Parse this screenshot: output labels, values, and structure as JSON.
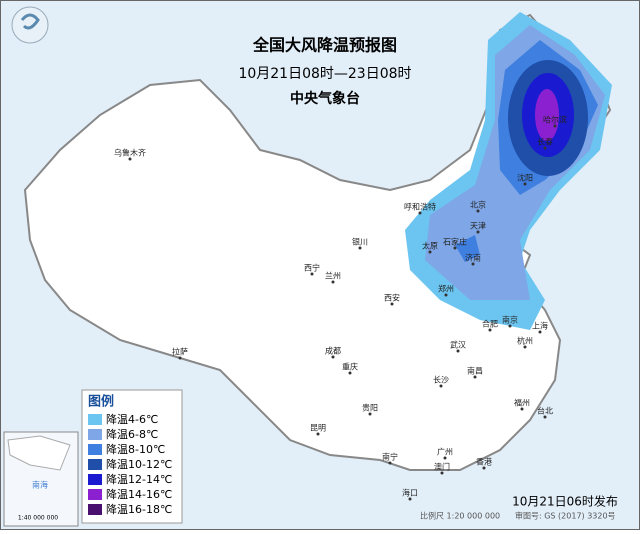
{
  "header": {
    "title": "全国大风降温预报图",
    "period": "10月21日08时—23日08时",
    "agency": "中央气象台"
  },
  "legend": {
    "title": "图例",
    "items": [
      {
        "label": "降温4-6℃",
        "color": "#6cc5f0"
      },
      {
        "label": "降温6-8℃",
        "color": "#7fa6e6"
      },
      {
        "label": "降温8-10℃",
        "color": "#3f7fe0"
      },
      {
        "label": "降温10-12℃",
        "color": "#1f4fa8"
      },
      {
        "label": "降温12-14℃",
        "color": "#1a1ad0"
      },
      {
        "label": "降温14-16℃",
        "color": "#8a20d0"
      },
      {
        "label": "降温16-18℃",
        "color": "#4a1070"
      }
    ]
  },
  "cities": [
    "乌鲁木齐",
    "拉萨",
    "西宁",
    "兰州",
    "银川",
    "呼和浩特",
    "北京",
    "天津",
    "石家庄",
    "太原",
    "济南",
    "郑州",
    "西安",
    "成都",
    "重庆",
    "贵阳",
    "昆明",
    "南宁",
    "武汉",
    "长沙",
    "南昌",
    "合肥",
    "南京",
    "上海",
    "杭州",
    "福州",
    "台北",
    "广州",
    "澳门",
    "香港",
    "海口",
    "沈阳",
    "长春",
    "哈尔滨"
  ],
  "inset": {
    "scale": "1:40 000 000",
    "sea": "南海"
  },
  "footer": {
    "scale": "比例尺 1:20 000 000",
    "approval": "审图号: GS (2017) 3320号",
    "issued": "10月21日06时发布"
  }
}
